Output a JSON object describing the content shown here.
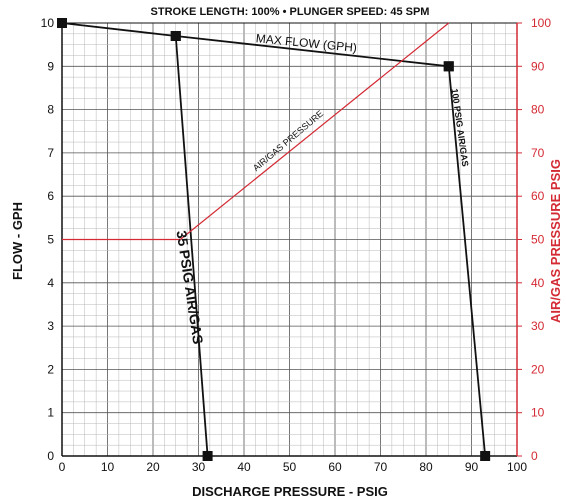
{
  "chart_data": {
    "type": "line",
    "title": "STROKE LENGTH: 100%  •  PLUNGER SPEED: 45 SPM",
    "xlabel": "DISCHARGE PRESSURE - PSIG",
    "ylabel": "FLOW - GPH",
    "y2label": "AIR/GAS PRESSURE PSIG",
    "xlim": [
      0,
      100
    ],
    "ylim": [
      0,
      10
    ],
    "y2lim": [
      0,
      100
    ],
    "grid": true,
    "x_ticks": [
      "0",
      "10",
      "20",
      "30",
      "40",
      "50",
      "60",
      "70",
      "80",
      "90",
      "100"
    ],
    "y_ticks": [
      "0",
      "1",
      "2",
      "3",
      "4",
      "5",
      "6",
      "7",
      "8",
      "9",
      "10"
    ],
    "y2_ticks": [
      "0",
      "10",
      "20",
      "30",
      "40",
      "50",
      "60",
      "70",
      "80",
      "90",
      "100"
    ],
    "series": [
      {
        "name": "MAX FLOW (GPH)",
        "axis": "left",
        "color": "#111111",
        "markers": true,
        "points": [
          [
            0,
            10.0
          ],
          [
            25,
            9.7
          ],
          [
            85,
            9.0
          ]
        ]
      },
      {
        "name": "35 PSIG AIR/GAS",
        "axis": "left",
        "color": "#111111",
        "markers": true,
        "points": [
          [
            25,
            9.7
          ],
          [
            32,
            0
          ]
        ]
      },
      {
        "name": "100 PSIG AIR/GAS",
        "axis": "left",
        "color": "#111111",
        "markers": true,
        "points": [
          [
            85,
            9.0
          ],
          [
            93,
            0
          ]
        ]
      },
      {
        "name": "AIR/GAS PRESSURE",
        "axis": "right",
        "color": "#d42a34",
        "markers": false,
        "points": [
          [
            0,
            50
          ],
          [
            26,
            50
          ],
          [
            85,
            100
          ]
        ]
      }
    ],
    "annotations": [
      {
        "text": "MAX FLOW (GPH)",
        "series": 0
      },
      {
        "text": "35 PSIG AIR/GAS",
        "series": 1
      },
      {
        "text": "100 PSIG AIR/GAS",
        "series": 2
      },
      {
        "text": "AIR/GAS PRESSURE",
        "series": 3
      }
    ]
  },
  "colors": {
    "primary_axis": "#111111",
    "secondary_axis": "#d42a34",
    "grid": "#b8b8b8"
  }
}
